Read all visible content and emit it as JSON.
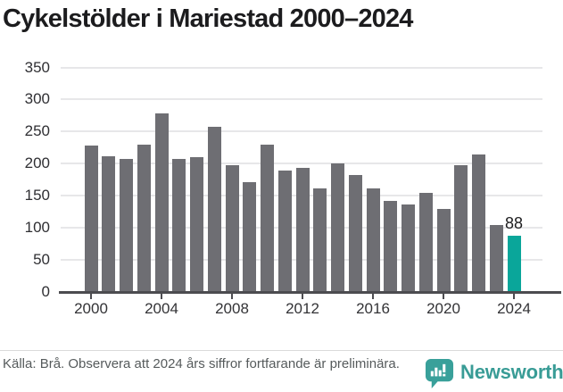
{
  "title": "Cykelstölder i Mariestad 2000–2024",
  "chart_data": {
    "type": "bar",
    "title": "Cykelstölder i Mariestad 2000–2024",
    "categories": [
      2000,
      2001,
      2002,
      2003,
      2004,
      2005,
      2006,
      2007,
      2008,
      2009,
      2010,
      2011,
      2012,
      2013,
      2014,
      2015,
      2016,
      2017,
      2018,
      2019,
      2020,
      2021,
      2022,
      2023,
      2024
    ],
    "values": [
      228,
      211,
      207,
      229,
      279,
      208,
      210,
      257,
      197,
      171,
      230,
      189,
      193,
      162,
      201,
      183,
      162,
      142,
      136,
      155,
      130,
      197,
      214,
      105,
      88
    ],
    "highlight_index": 24,
    "annotation": {
      "index": 24,
      "text": "88"
    },
    "xlabel": "",
    "ylabel": "",
    "ylim": [
      0,
      350
    ],
    "y_ticks": [
      0,
      50,
      100,
      150,
      200,
      250,
      300,
      350
    ],
    "x_tick_years": [
      2000,
      2004,
      2008,
      2012,
      2016,
      2020,
      2024
    ],
    "grid": true,
    "legend": "none",
    "bar_color": "#6e6e73",
    "highlight_color": "#0aa69a"
  },
  "footer": {
    "source_text": "Källa: Brå. Observera att 2024 års siffror fortfarande är preliminära.",
    "logo_text": "Newsworthy"
  },
  "colors": {
    "bar": "#6e6e73",
    "highlight": "#0aa69a",
    "logo": "#399c96",
    "gridline": "#e7e7e9",
    "axis": "#4c4c50"
  }
}
